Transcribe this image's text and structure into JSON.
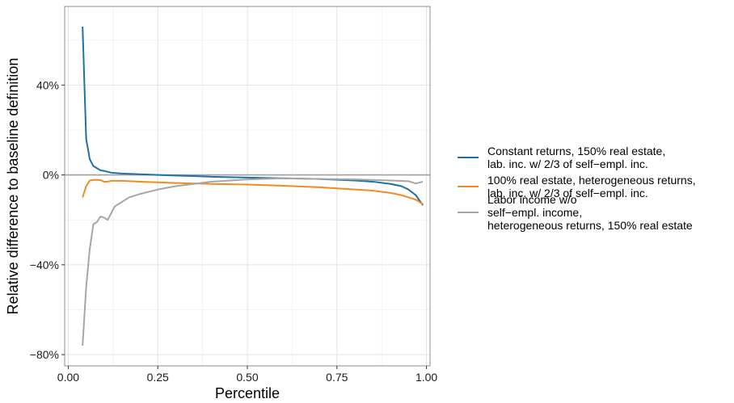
{
  "chart_data": {
    "type": "line",
    "title": "",
    "xlabel": "Percentile",
    "ylabel": "Relative difference to baseline definition",
    "xlim": [
      -0.01,
      1.01
    ],
    "ylim": [
      -0.85,
      0.75
    ],
    "x_ticks": [
      0.0,
      0.25,
      0.5,
      0.75,
      1.0
    ],
    "x_tick_labels": [
      "0.00",
      "0.25",
      "0.50",
      "0.75",
      "1.00"
    ],
    "y_ticks": [
      -0.8,
      -0.4,
      0.0,
      0.4
    ],
    "y_tick_labels": [
      "−80%",
      "−40%",
      "0%",
      "40%"
    ],
    "grid": true,
    "reference_line_y": 0,
    "legend_position": "right",
    "series": [
      {
        "name": "Constant returns, 150% real estate,\nlab. inc. w/ 2/3 of self−empl. inc.",
        "color": "#1f6fa8",
        "x": [
          0.04,
          0.05,
          0.06,
          0.07,
          0.08,
          0.09,
          0.1,
          0.12,
          0.15,
          0.2,
          0.25,
          0.3,
          0.35,
          0.4,
          0.5,
          0.6,
          0.7,
          0.8,
          0.85,
          0.9,
          0.93,
          0.95,
          0.97,
          0.99
        ],
        "y": [
          0.66,
          0.16,
          0.07,
          0.04,
          0.03,
          0.02,
          0.018,
          0.01,
          0.006,
          0.003,
          0.0,
          -0.003,
          -0.005,
          -0.008,
          -0.012,
          -0.015,
          -0.018,
          -0.025,
          -0.03,
          -0.04,
          -0.05,
          -0.065,
          -0.09,
          -0.135
        ]
      },
      {
        "name": "100% real estate, heterogeneous returns,\nlab. inc. w/ 2/3 of self−empl. inc.",
        "color": "#f08a24",
        "x": [
          0.04,
          0.05,
          0.06,
          0.07,
          0.08,
          0.09,
          0.1,
          0.11,
          0.12,
          0.15,
          0.2,
          0.25,
          0.3,
          0.4,
          0.5,
          0.6,
          0.7,
          0.8,
          0.85,
          0.9,
          0.93,
          0.95,
          0.97,
          0.99
        ],
        "y": [
          -0.1,
          -0.05,
          -0.025,
          -0.022,
          -0.022,
          -0.023,
          -0.03,
          -0.03,
          -0.026,
          -0.026,
          -0.03,
          -0.033,
          -0.036,
          -0.04,
          -0.043,
          -0.048,
          -0.055,
          -0.065,
          -0.07,
          -0.08,
          -0.09,
          -0.1,
          -0.11,
          -0.13
        ]
      },
      {
        "name": "Labor income w/o\nself−empl. income,\nheterogeneous returns, 150% real estate",
        "color": "#a6a6a6",
        "x": [
          0.04,
          0.05,
          0.06,
          0.07,
          0.08,
          0.09,
          0.1,
          0.11,
          0.12,
          0.13,
          0.14,
          0.15,
          0.17,
          0.2,
          0.25,
          0.3,
          0.35,
          0.4,
          0.5,
          0.6,
          0.7,
          0.8,
          0.9,
          0.95,
          0.97,
          0.99
        ],
        "y": [
          -0.76,
          -0.5,
          -0.33,
          -0.22,
          -0.21,
          -0.185,
          -0.19,
          -0.2,
          -0.17,
          -0.14,
          -0.13,
          -0.12,
          -0.1,
          -0.085,
          -0.065,
          -0.05,
          -0.04,
          -0.03,
          -0.02,
          -0.015,
          -0.018,
          -0.02,
          -0.025,
          -0.028,
          -0.038,
          -0.03
        ]
      }
    ]
  }
}
